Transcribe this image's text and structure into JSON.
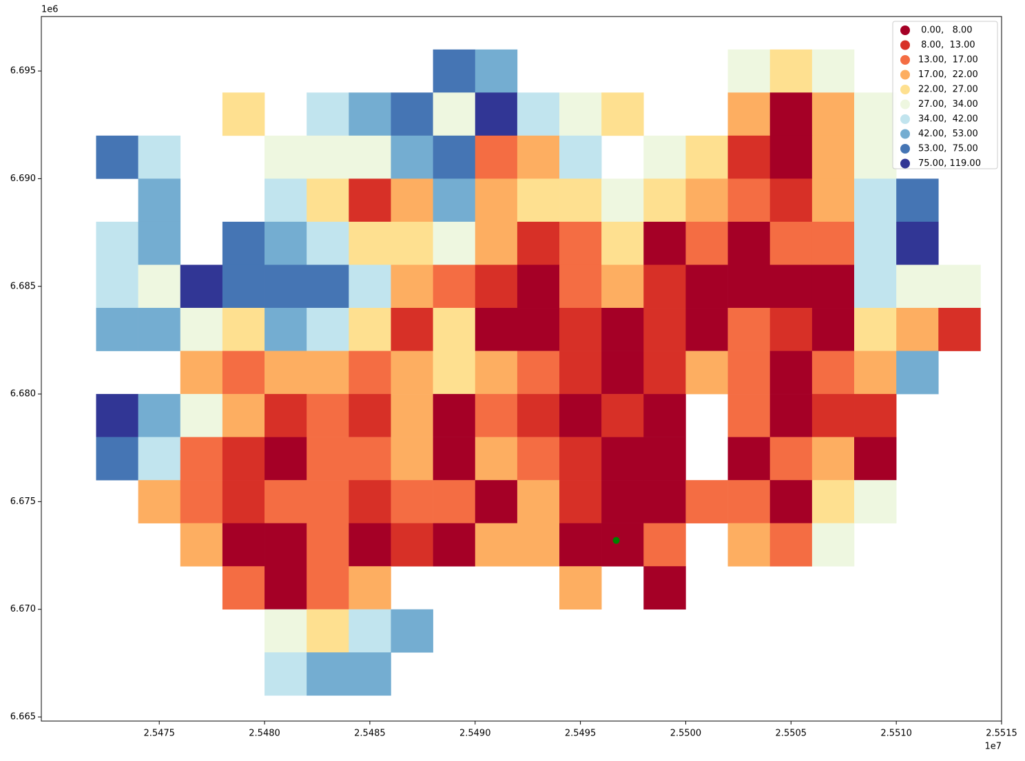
{
  "chart_data": {
    "type": "grid-map",
    "xlim": [
      25469400,
      25515000
    ],
    "ylim": [
      6664810,
      6697530
    ],
    "xticks": [
      {
        "value": 25475000,
        "label": "2.5475"
      },
      {
        "value": 25480000,
        "label": "2.5480"
      },
      {
        "value": 25485000,
        "label": "2.5485"
      },
      {
        "value": 25490000,
        "label": "2.5490"
      },
      {
        "value": 25495000,
        "label": "2.5495"
      },
      {
        "value": 25500000,
        "label": "2.5500"
      },
      {
        "value": 25505000,
        "label": "2.5505"
      },
      {
        "value": 25510000,
        "label": "2.5510"
      },
      {
        "value": 25515000,
        "label": "2.5515"
      }
    ],
    "yticks": [
      {
        "value": 6665000,
        "label": "6.665"
      },
      {
        "value": 6670000,
        "label": "6.670"
      },
      {
        "value": 6675000,
        "label": "6.675"
      },
      {
        "value": 6680000,
        "label": "6.680"
      },
      {
        "value": 6685000,
        "label": "6.685"
      },
      {
        "value": 6690000,
        "label": "6.690"
      },
      {
        "value": 6695000,
        "label": "6.695"
      }
    ],
    "x_offset_label": "1e7",
    "y_offset_label": "1e6",
    "legend": {
      "position": "upper right",
      "labels": [
        " 0.00,   8.00",
        " 8.00,  13.00",
        "13.00,  17.00",
        "17.00,  22.00",
        "22.00,  27.00",
        "27.00,  34.00",
        "34.00,  42.00",
        "42.00,  53.00",
        "53.00,  75.00",
        "75.00, 119.00"
      ],
      "colors": [
        "#a50026",
        "#d73027",
        "#f46d43",
        "#fdae61",
        "#fee090",
        "#eef7e0",
        "#c1e4ee",
        "#74add1",
        "#4575b4",
        "#313695"
      ]
    },
    "cells": {
      "x": [
        25472000,
        25474000,
        25476000,
        25478000,
        25480000,
        25482000,
        25484000,
        25486000,
        25488000,
        25490000,
        25492000,
        25494000,
        25496000,
        25498000,
        25500000,
        25502000,
        25504000,
        25506000,
        25508000,
        25510000,
        25512000
      ],
      "y": [
        6694000,
        6692000,
        6690000,
        6688000,
        6686000,
        6684000,
        6682000,
        6680000,
        6678000,
        6676000,
        6674000,
        6672000,
        6670000,
        6668000,
        6666000
      ],
      "classes": [
        [
          null,
          null,
          null,
          null,
          null,
          null,
          null,
          null,
          8,
          7,
          null,
          null,
          null,
          null,
          null,
          5,
          4,
          5,
          null,
          null,
          null
        ],
        [
          null,
          null,
          null,
          4,
          null,
          6,
          7,
          8,
          5,
          9,
          6,
          5,
          4,
          null,
          null,
          3,
          0,
          3,
          5,
          null,
          null
        ],
        [
          8,
          6,
          null,
          null,
          5,
          5,
          5,
          7,
          8,
          2,
          3,
          6,
          null,
          5,
          4,
          1,
          0,
          3,
          5,
          null,
          null
        ],
        [
          null,
          7,
          null,
          null,
          6,
          4,
          1,
          3,
          7,
          3,
          4,
          4,
          5,
          4,
          3,
          2,
          1,
          3,
          6,
          8,
          null
        ],
        [
          6,
          7,
          null,
          8,
          7,
          6,
          4,
          4,
          5,
          3,
          1,
          2,
          4,
          0,
          2,
          0,
          2,
          2,
          6,
          9,
          null
        ],
        [
          6,
          5,
          9,
          8,
          8,
          8,
          6,
          3,
          2,
          1,
          0,
          2,
          3,
          1,
          0,
          0,
          0,
          0,
          6,
          5,
          5
        ],
        [
          7,
          7,
          5,
          4,
          7,
          6,
          4,
          1,
          4,
          0,
          0,
          1,
          0,
          1,
          0,
          2,
          1,
          0,
          4,
          3,
          1
        ],
        [
          null,
          null,
          3,
          2,
          3,
          3,
          2,
          3,
          4,
          3,
          2,
          1,
          0,
          1,
          3,
          2,
          0,
          2,
          3,
          7,
          null
        ],
        [
          9,
          7,
          5,
          3,
          1,
          2,
          1,
          3,
          0,
          2,
          1,
          0,
          1,
          0,
          null,
          2,
          0,
          1,
          1,
          null,
          null
        ],
        [
          8,
          6,
          2,
          1,
          0,
          2,
          2,
          3,
          0,
          3,
          2,
          1,
          0,
          0,
          null,
          0,
          2,
          3,
          0,
          null,
          null
        ],
        [
          null,
          3,
          2,
          1,
          2,
          2,
          1,
          2,
          2,
          0,
          3,
          1,
          0,
          0,
          2,
          2,
          0,
          4,
          5,
          null,
          null
        ],
        [
          null,
          null,
          3,
          0,
          0,
          2,
          0,
          1,
          0,
          3,
          3,
          0,
          0,
          2,
          null,
          3,
          2,
          5,
          null,
          null,
          null
        ],
        [
          null,
          null,
          null,
          2,
          0,
          2,
          3,
          null,
          null,
          null,
          null,
          3,
          null,
          0,
          null,
          null,
          null,
          null,
          null,
          null,
          null
        ],
        [
          null,
          null,
          null,
          null,
          5,
          4,
          6,
          7,
          null,
          null,
          null,
          null,
          null,
          null,
          null,
          null,
          null,
          null,
          null,
          null,
          null
        ],
        [
          null,
          null,
          null,
          null,
          6,
          7,
          7,
          null,
          null,
          null,
          null,
          null,
          null,
          null,
          null,
          null,
          null,
          null,
          null,
          null,
          null
        ]
      ]
    },
    "point": {
      "x": 25496700,
      "y": 6673200,
      "color": "#008000"
    }
  }
}
